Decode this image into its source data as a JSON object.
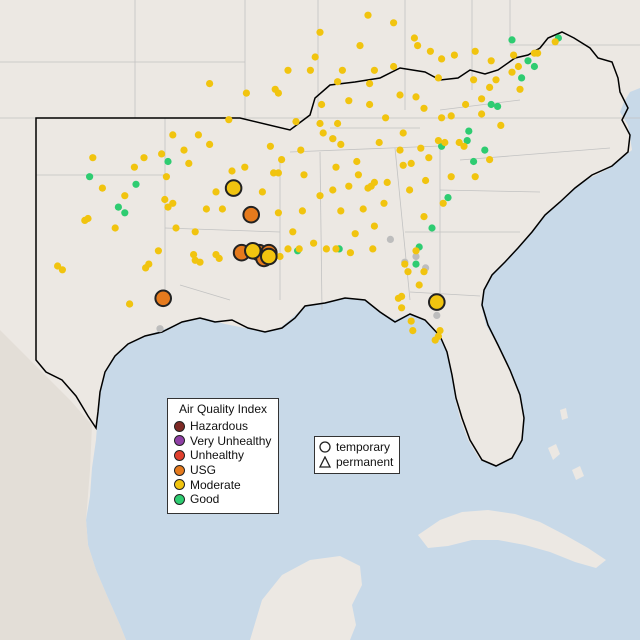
{
  "colors": {
    "water": "#c8d9e8",
    "land": "#ece8e3",
    "land_mexico": "#e3ded7",
    "state_line": "#c2c2c2",
    "highlight_line": "#000000",
    "marker_border": "#222222"
  },
  "aqi_legend": {
    "title": "Air Quality Index",
    "items": [
      {
        "label": "Hazardous",
        "color": "#7e2a25"
      },
      {
        "label": "Very Unhealthy",
        "color": "#8f3fa5"
      },
      {
        "label": "Unhealthy",
        "color": "#e0402e"
      },
      {
        "label": "USG",
        "color": "#e57a1d"
      },
      {
        "label": "Moderate",
        "color": "#f1c40f"
      },
      {
        "label": "Good",
        "color": "#2ecc71"
      }
    ]
  },
  "type_legend": {
    "items": [
      {
        "label": "temporary",
        "shape": "circle-outline-icon"
      },
      {
        "label": "permanent",
        "shape": "triangle-outline-icon"
      }
    ]
  },
  "monitors": {
    "temporary_usg": [
      {
        "lon": -97.4,
        "lat": 27.8
      },
      {
        "lon": -91.9,
        "lat": 32.2
      },
      {
        "lon": -92.5,
        "lat": 30.2
      },
      {
        "lon": -91.4,
        "lat": 30.2
      },
      {
        "lon": -90.8,
        "lat": 30.2
      },
      {
        "lon": -91.1,
        "lat": 29.9
      }
    ],
    "temporary_moderate": [
      {
        "lon": -93.0,
        "lat": 33.6
      },
      {
        "lon": -91.8,
        "lat": 30.3
      },
      {
        "lon": -90.8,
        "lat": 30.0
      },
      {
        "lon": -80.3,
        "lat": 27.6
      }
    ],
    "permanent_moderate": [
      {
        "lon": -96.8,
        "lat": 36.4
      },
      {
        "lon": -95.2,
        "lat": 36.4
      },
      {
        "lon": -94.5,
        "lat": 35.9
      },
      {
        "lon": -97.5,
        "lat": 35.4
      },
      {
        "lon": -96.1,
        "lat": 35.6
      },
      {
        "lon": -98.6,
        "lat": 35.2
      },
      {
        "lon": -99.2,
        "lat": 34.7
      },
      {
        "lon": -97.2,
        "lat": 34.2
      },
      {
        "lon": -95.8,
        "lat": 34.9
      },
      {
        "lon": -101.8,
        "lat": 35.2
      },
      {
        "lon": -101.2,
        "lat": 33.6
      },
      {
        "lon": -99.8,
        "lat": 33.2
      },
      {
        "lon": -97.3,
        "lat": 33.0
      },
      {
        "lon": -96.8,
        "lat": 32.8
      },
      {
        "lon": -97.1,
        "lat": 32.6
      },
      {
        "lon": -96.6,
        "lat": 31.5
      },
      {
        "lon": -94.7,
        "lat": 32.5
      },
      {
        "lon": -95.4,
        "lat": 31.3
      },
      {
        "lon": -97.7,
        "lat": 30.3
      },
      {
        "lon": -98.5,
        "lat": 29.4
      },
      {
        "lon": -98.3,
        "lat": 29.6
      },
      {
        "lon": -95.4,
        "lat": 29.8
      },
      {
        "lon": -95.1,
        "lat": 29.7
      },
      {
        "lon": -95.5,
        "lat": 30.1
      },
      {
        "lon": -94.1,
        "lat": 30.1
      },
      {
        "lon": -93.9,
        "lat": 29.9
      },
      {
        "lon": -100.4,
        "lat": 31.5
      },
      {
        "lon": -102.3,
        "lat": 31.9
      },
      {
        "lon": -102.1,
        "lat": 32.0
      },
      {
        "lon": -104.0,
        "lat": 29.5
      },
      {
        "lon": -103.7,
        "lat": 29.3
      },
      {
        "lon": -99.5,
        "lat": 27.5
      },
      {
        "lon": -92.3,
        "lat": 34.7
      },
      {
        "lon": -93.1,
        "lat": 34.5
      },
      {
        "lon": -90.7,
        "lat": 35.8
      },
      {
        "lon": -90.2,
        "lat": 34.4
      },
      {
        "lon": -91.2,
        "lat": 33.4
      },
      {
        "lon": -94.1,
        "lat": 33.4
      },
      {
        "lon": -93.7,
        "lat": 32.5
      },
      {
        "lon": -92.1,
        "lat": 30.2
      },
      {
        "lon": -90.1,
        "lat": 30.0
      },
      {
        "lon": -89.6,
        "lat": 30.4
      },
      {
        "lon": -90.2,
        "lat": 32.3
      },
      {
        "lon": -88.7,
        "lat": 32.4
      },
      {
        "lon": -89.3,
        "lat": 31.3
      },
      {
        "lon": -88.9,
        "lat": 30.4
      },
      {
        "lon": -90.5,
        "lat": 34.4
      },
      {
        "lon": -88.6,
        "lat": 34.3
      },
      {
        "lon": -88.0,
        "lat": 30.7
      },
      {
        "lon": -86.8,
        "lat": 33.5
      },
      {
        "lon": -86.3,
        "lat": 32.4
      },
      {
        "lon": -85.4,
        "lat": 31.2
      },
      {
        "lon": -85.8,
        "lat": 33.7
      },
      {
        "lon": -87.6,
        "lat": 33.2
      },
      {
        "lon": -86.6,
        "lat": 34.7
      },
      {
        "lon": -87.2,
        "lat": 30.4
      },
      {
        "lon": -86.6,
        "lat": 30.4
      },
      {
        "lon": -85.7,
        "lat": 30.2
      },
      {
        "lon": -90.0,
        "lat": 35.1
      },
      {
        "lon": -88.8,
        "lat": 35.6
      },
      {
        "lon": -86.8,
        "lat": 36.2
      },
      {
        "lon": -86.3,
        "lat": 35.9
      },
      {
        "lon": -85.3,
        "lat": 35.0
      },
      {
        "lon": -83.9,
        "lat": 36.0
      },
      {
        "lon": -82.4,
        "lat": 36.5
      },
      {
        "lon": -87.4,
        "lat": 36.5
      },
      {
        "lon": -89.1,
        "lat": 37.1
      },
      {
        "lon": -87.6,
        "lat": 37.0
      },
      {
        "lon": -86.5,
        "lat": 37.0
      },
      {
        "lon": -85.8,
        "lat": 38.2
      },
      {
        "lon": -84.5,
        "lat": 38.0
      },
      {
        "lon": -82.6,
        "lat": 38.5
      },
      {
        "lon": -83.5,
        "lat": 37.3
      },
      {
        "lon": -81.6,
        "lat": 38.4
      },
      {
        "lon": -80.2,
        "lat": 39.4
      },
      {
        "lon": -81.1,
        "lat": 37.8
      },
      {
        "lon": -78.0,
        "lat": 39.3
      },
      {
        "lon": -80.0,
        "lat": 37.3
      },
      {
        "lon": -78.5,
        "lat": 38.0
      },
      {
        "lon": -77.5,
        "lat": 37.5
      },
      {
        "lon": -76.3,
        "lat": 36.9
      },
      {
        "lon": -77.5,
        "lat": 38.3
      },
      {
        "lon": -79.4,
        "lat": 37.4
      },
      {
        "lon": -80.8,
        "lat": 35.2
      },
      {
        "lon": -80.2,
        "lat": 36.1
      },
      {
        "lon": -79.8,
        "lat": 36.0
      },
      {
        "lon": -78.6,
        "lat": 35.8
      },
      {
        "lon": -78.9,
        "lat": 36.0
      },
      {
        "lon": -77.9,
        "lat": 34.2
      },
      {
        "lon": -82.6,
        "lat": 35.6
      },
      {
        "lon": -81.3,
        "lat": 35.7
      },
      {
        "lon": -77.0,
        "lat": 35.1
      },
      {
        "lon": -81.0,
        "lat": 34.0
      },
      {
        "lon": -82.4,
        "lat": 34.8
      },
      {
        "lon": -81.9,
        "lat": 34.9
      },
      {
        "lon": -79.9,
        "lat": 32.8
      },
      {
        "lon": -79.4,
        "lat": 34.2
      },
      {
        "lon": -84.4,
        "lat": 33.7
      },
      {
        "lon": -84.2,
        "lat": 33.9
      },
      {
        "lon": -84.6,
        "lat": 33.6
      },
      {
        "lon": -83.4,
        "lat": 33.9
      },
      {
        "lon": -82.0,
        "lat": 33.5
      },
      {
        "lon": -83.6,
        "lat": 32.8
      },
      {
        "lon": -84.9,
        "lat": 32.5
      },
      {
        "lon": -81.1,
        "lat": 32.1
      },
      {
        "lon": -84.2,
        "lat": 31.6
      },
      {
        "lon": -85.2,
        "lat": 34.3
      },
      {
        "lon": -84.3,
        "lat": 30.4
      },
      {
        "lon": -82.3,
        "lat": 29.6
      },
      {
        "lon": -81.6,
        "lat": 30.3
      },
      {
        "lon": -81.4,
        "lat": 28.5
      },
      {
        "lon": -82.5,
        "lat": 27.9
      },
      {
        "lon": -82.7,
        "lat": 27.8
      },
      {
        "lon": -82.5,
        "lat": 27.3
      },
      {
        "lon": -81.9,
        "lat": 26.6
      },
      {
        "lon": -80.1,
        "lat": 26.1
      },
      {
        "lon": -80.2,
        "lat": 25.8
      },
      {
        "lon": -80.4,
        "lat": 25.6
      },
      {
        "lon": -81.8,
        "lat": 26.1
      },
      {
        "lon": -81.1,
        "lat": 29.2
      },
      {
        "lon": -82.1,
        "lat": 29.2
      },
      {
        "lon": -94.5,
        "lat": 39.1
      },
      {
        "lon": -93.3,
        "lat": 37.2
      },
      {
        "lon": -90.2,
        "lat": 38.6
      },
      {
        "lon": -90.4,
        "lat": 38.8
      },
      {
        "lon": -92.2,
        "lat": 38.6
      },
      {
        "lon": -87.6,
        "lat": 41.8
      },
      {
        "lon": -86.2,
        "lat": 39.8
      },
      {
        "lon": -85.1,
        "lat": 41.1
      },
      {
        "lon": -86.5,
        "lat": 39.2
      },
      {
        "lon": -87.5,
        "lat": 38.0
      },
      {
        "lon": -84.5,
        "lat": 39.1
      },
      {
        "lon": -83.0,
        "lat": 40.0
      },
      {
        "lon": -81.7,
        "lat": 41.5
      },
      {
        "lon": -84.2,
        "lat": 39.8
      },
      {
        "lon": -80.7,
        "lat": 40.8
      },
      {
        "lon": -81.5,
        "lat": 41.1
      },
      {
        "lon": -80.0,
        "lat": 40.4
      },
      {
        "lon": -79.2,
        "lat": 40.6
      },
      {
        "lon": -77.9,
        "lat": 40.8
      },
      {
        "lon": -76.9,
        "lat": 40.3
      },
      {
        "lon": -75.2,
        "lat": 40.0
      },
      {
        "lon": -75.5,
        "lat": 40.6
      },
      {
        "lon": -74.2,
        "lat": 40.7
      },
      {
        "lon": -74.0,
        "lat": 40.7
      },
      {
        "lon": -76.6,
        "lat": 39.3
      },
      {
        "lon": -77.0,
        "lat": 38.9
      },
      {
        "lon": -75.6,
        "lat": 39.7
      },
      {
        "lon": -75.1,
        "lat": 38.8
      },
      {
        "lon": -72.9,
        "lat": 41.3
      },
      {
        "lon": -83.0,
        "lat": 42.3
      },
      {
        "lon": -84.6,
        "lat": 42.7
      },
      {
        "lon": -87.9,
        "lat": 40.5
      },
      {
        "lon": -88.2,
        "lat": 39.8
      },
      {
        "lon": -89.6,
        "lat": 39.8
      }
    ],
    "permanent_good": [
      {
        "lon": -102.0,
        "lat": 34.2
      },
      {
        "lon": -99.1,
        "lat": 33.8
      },
      {
        "lon": -97.1,
        "lat": 35.0
      },
      {
        "lon": -100.2,
        "lat": 32.6
      },
      {
        "lon": -99.8,
        "lat": 32.3
      },
      {
        "lon": -89.0,
        "lat": 30.3
      },
      {
        "lon": -86.4,
        "lat": 30.4
      },
      {
        "lon": -81.4,
        "lat": 30.5
      },
      {
        "lon": -81.6,
        "lat": 29.6
      },
      {
        "lon": -80.6,
        "lat": 31.5
      },
      {
        "lon": -79.6,
        "lat": 33.1
      },
      {
        "lon": -80.0,
        "lat": 35.8
      },
      {
        "lon": -78.4,
        "lat": 36.1
      },
      {
        "lon": -78.0,
        "lat": 35.0
      },
      {
        "lon": -77.3,
        "lat": 35.6
      },
      {
        "lon": -78.3,
        "lat": 36.6
      },
      {
        "lon": -76.9,
        "lat": 38.0
      },
      {
        "lon": -76.5,
        "lat": 37.9
      },
      {
        "lon": -74.2,
        "lat": 40.0
      },
      {
        "lon": -75.0,
        "lat": 39.4
      },
      {
        "lon": -75.6,
        "lat": 41.4
      },
      {
        "lon": -72.7,
        "lat": 41.5
      },
      {
        "lon": -74.6,
        "lat": 40.3
      }
    ],
    "permanent_no_data": [
      {
        "lon": -97.6,
        "lat": 26.2
      },
      {
        "lon": -99.5,
        "lat": 27.5
      },
      {
        "lon": -86.8,
        "lat": 36.2
      },
      {
        "lon": -81.6,
        "lat": 30.0
      },
      {
        "lon": -83.2,
        "lat": 30.9
      },
      {
        "lon": -82.3,
        "lat": 29.7
      },
      {
        "lon": -81.0,
        "lat": 29.4
      },
      {
        "lon": -80.3,
        "lat": 26.9
      }
    ]
  }
}
